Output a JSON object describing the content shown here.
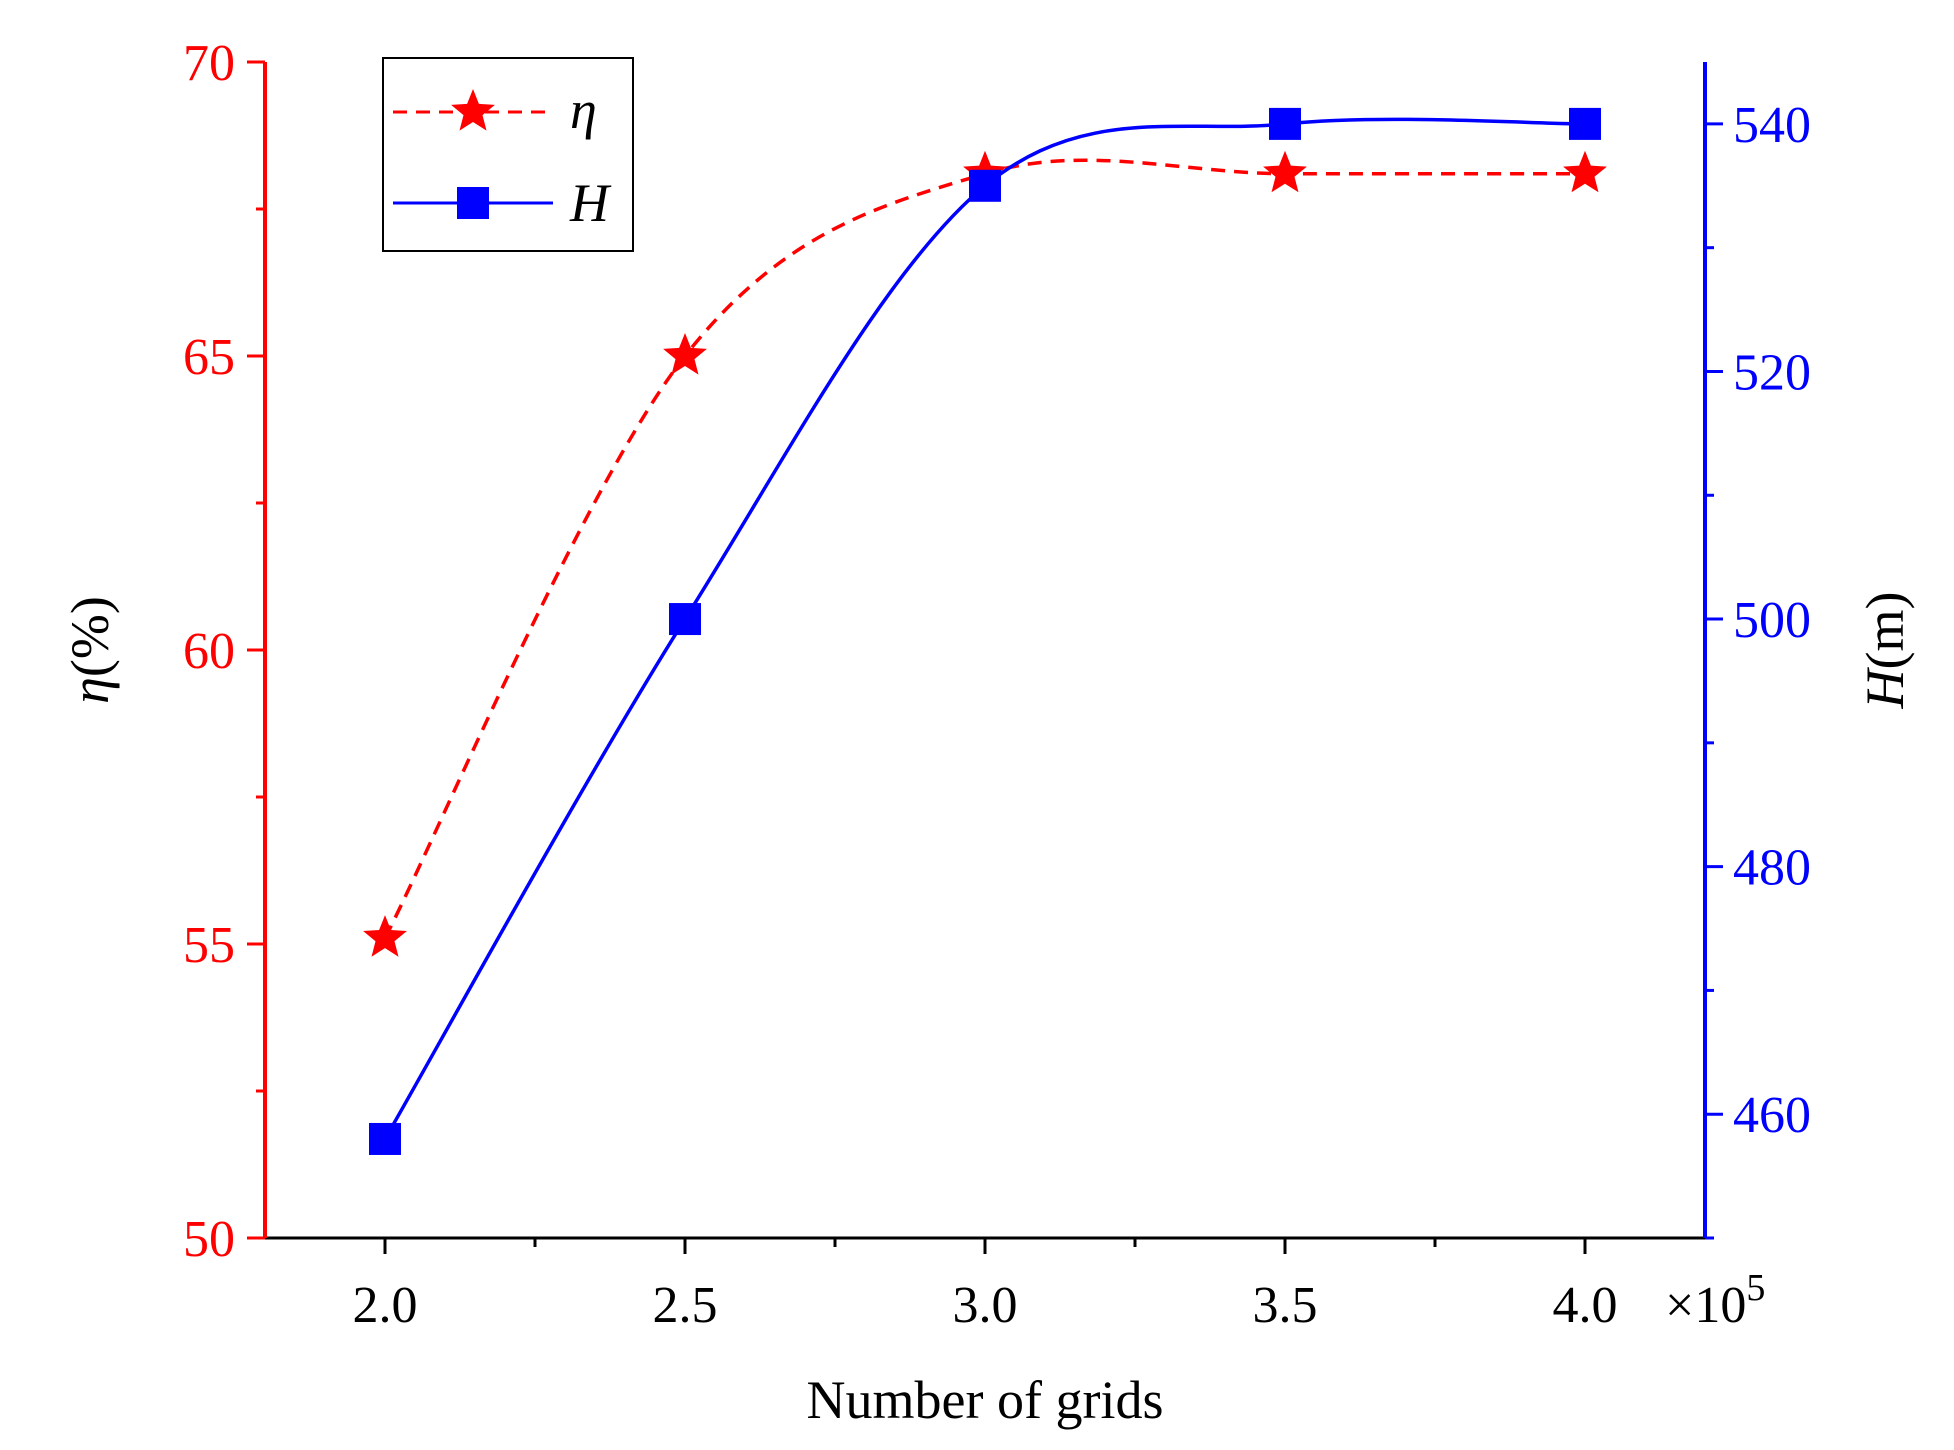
{
  "chart_data": {
    "type": "line",
    "title": "",
    "xlabel": "Number of grids",
    "x_multiplier": "×10",
    "x_multiplier_exp": "5",
    "x": [
      2.0,
      2.5,
      3.0,
      3.5,
      4.0
    ],
    "x_tick_labels": [
      "2.0",
      "2.5",
      "3.0",
      "3.5",
      "4.0"
    ],
    "xlim": [
      1.8,
      4.2
    ],
    "ylabel_left_symbol": "η",
    "ylabel_left_unit": "(%)",
    "ylabel_right_symbol": "H",
    "ylabel_right_unit": "(m)",
    "y_left_ticks": [
      50,
      55,
      60,
      65,
      70
    ],
    "y_left_tick_labels": [
      "50",
      "55",
      "60",
      "65",
      "70"
    ],
    "ylim_left": [
      50,
      70
    ],
    "y_right_ticks": [
      460,
      480,
      500,
      520,
      540
    ],
    "y_right_tick_labels": [
      "460",
      "480",
      "500",
      "520",
      "540"
    ],
    "ylim_right": [
      450,
      545
    ],
    "series": [
      {
        "name": "η",
        "axis": "left",
        "color": "#ff0000",
        "marker": "star",
        "line_style": "dashed",
        "values": [
          55.1,
          65.0,
          68.1,
          68.1,
          68.1
        ]
      },
      {
        "name": "H",
        "axis": "right",
        "color": "#0000ff",
        "marker": "square",
        "line_style": "solid",
        "values": [
          458,
          500,
          535,
          540,
          540
        ]
      }
    ],
    "legend": {
      "position": "top-left",
      "entries": [
        "η",
        "H"
      ]
    },
    "left_axis_color": "#ff0000",
    "right_axis_color": "#0000ff",
    "bottom_axis_color": "#000000"
  }
}
